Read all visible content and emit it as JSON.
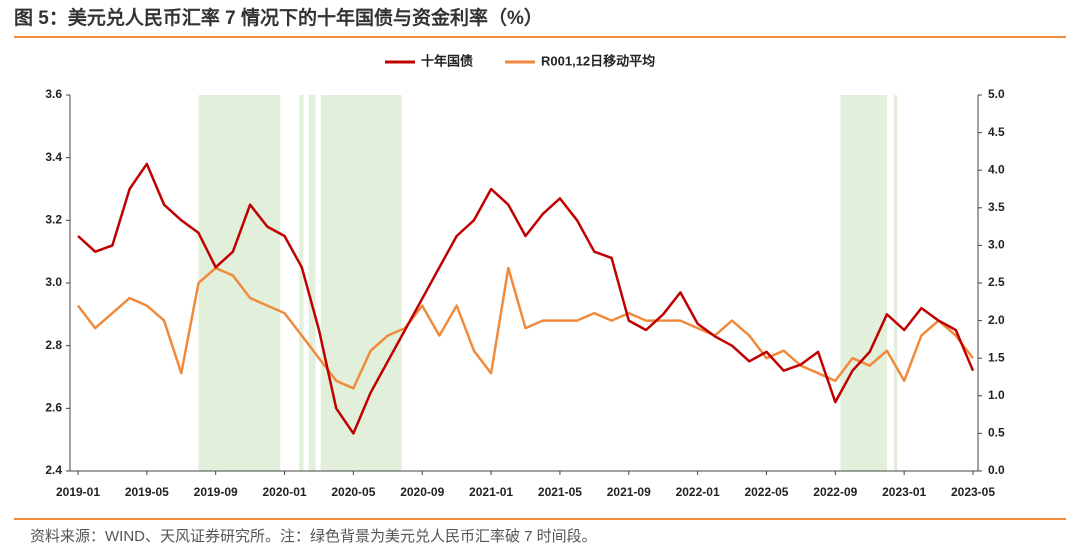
{
  "chart_data": {
    "type": "line",
    "title": "图 5：美元兑人民币汇率 7 情况下的十年国债与资金利率（%）",
    "source": "资料来源：WIND、天风证券研究所。注：绿色背景为美元兑人民币汇率破 7 时间段。",
    "categories": [
      "2019-01",
      null,
      null,
      null,
      "2019-05",
      null,
      null,
      null,
      "2019-09",
      null,
      null,
      null,
      "2020-01",
      null,
      null,
      null,
      "2020-05",
      null,
      null,
      null,
      "2020-09",
      null,
      null,
      null,
      "2021-01",
      null,
      null,
      null,
      "2021-05",
      null,
      null,
      null,
      "2021-09",
      null,
      null,
      null,
      "2022-01",
      null,
      null,
      null,
      "2022-05",
      null,
      null,
      null,
      "2022-09",
      null,
      null,
      null,
      "2023-01",
      null,
      null,
      null,
      "2023-05"
    ],
    "series": [
      {
        "name": "十年国债",
        "color": "#c00000",
        "axis": "y",
        "values": [
          3.15,
          3.1,
          3.12,
          3.3,
          3.38,
          3.25,
          3.2,
          3.16,
          3.05,
          3.1,
          3.25,
          3.18,
          3.15,
          3.05,
          2.85,
          2.6,
          2.52,
          2.65,
          2.75,
          2.85,
          2.95,
          3.05,
          3.15,
          3.2,
          3.3,
          3.25,
          3.15,
          3.22,
          3.27,
          3.2,
          3.1,
          3.08,
          2.88,
          2.85,
          2.9,
          2.97,
          2.87,
          2.83,
          2.8,
          2.75,
          2.78,
          2.72,
          2.74,
          2.78,
          2.62,
          2.72,
          2.78,
          2.9,
          2.85,
          2.92,
          2.88,
          2.85,
          2.72
        ]
      },
      {
        "name": "R001,12日移动平均",
        "color": "#f08a3c",
        "axis": "y2",
        "values": [
          2.2,
          1.9,
          2.1,
          2.3,
          2.2,
          2.0,
          1.3,
          2.5,
          2.7,
          2.6,
          2.3,
          2.2,
          2.1,
          1.8,
          1.5,
          1.2,
          1.1,
          1.6,
          1.8,
          1.9,
          2.2,
          1.8,
          2.2,
          1.6,
          1.3,
          2.7,
          1.9,
          2.0,
          2.0,
          2.0,
          2.1,
          2.0,
          2.1,
          2.0,
          2.0,
          2.0,
          1.9,
          1.8,
          2.0,
          1.8,
          1.5,
          1.6,
          1.4,
          1.3,
          1.2,
          1.5,
          1.4,
          1.6,
          1.2,
          1.8,
          2.0,
          1.8,
          1.5
        ]
      }
    ],
    "shaded_periods": [
      {
        "start": 7.0,
        "end": 11.75
      },
      {
        "start": 12.85,
        "end": 13.1
      },
      {
        "start": 13.4,
        "end": 13.8
      },
      {
        "start": 14.1,
        "end": 18.8
      },
      {
        "start": 44.3,
        "end": 47.0
      },
      {
        "start": 47.4,
        "end": 47.6
      }
    ],
    "shade_color": "#e2efda",
    "ylim": [
      2.4,
      3.6
    ],
    "yticks": [
      2.4,
      2.6,
      2.8,
      {
        "value": 3,
        "label": "3.0"
      },
      3.2,
      3.4,
      3.6
    ],
    "y2lim": [
      0,
      5
    ],
    "y2ticks": [
      {
        "value": 0,
        "label": "0.0"
      },
      0.5,
      {
        "value": 1,
        "label": "1.0"
      },
      1.5,
      {
        "value": 2,
        "label": "2.0"
      },
      2.5,
      {
        "value": 3,
        "label": "3.0"
      },
      3.5,
      {
        "value": 4,
        "label": "4.0"
      },
      4.5,
      {
        "value": 5,
        "label": "5.0"
      }
    ],
    "legend": "top"
  }
}
